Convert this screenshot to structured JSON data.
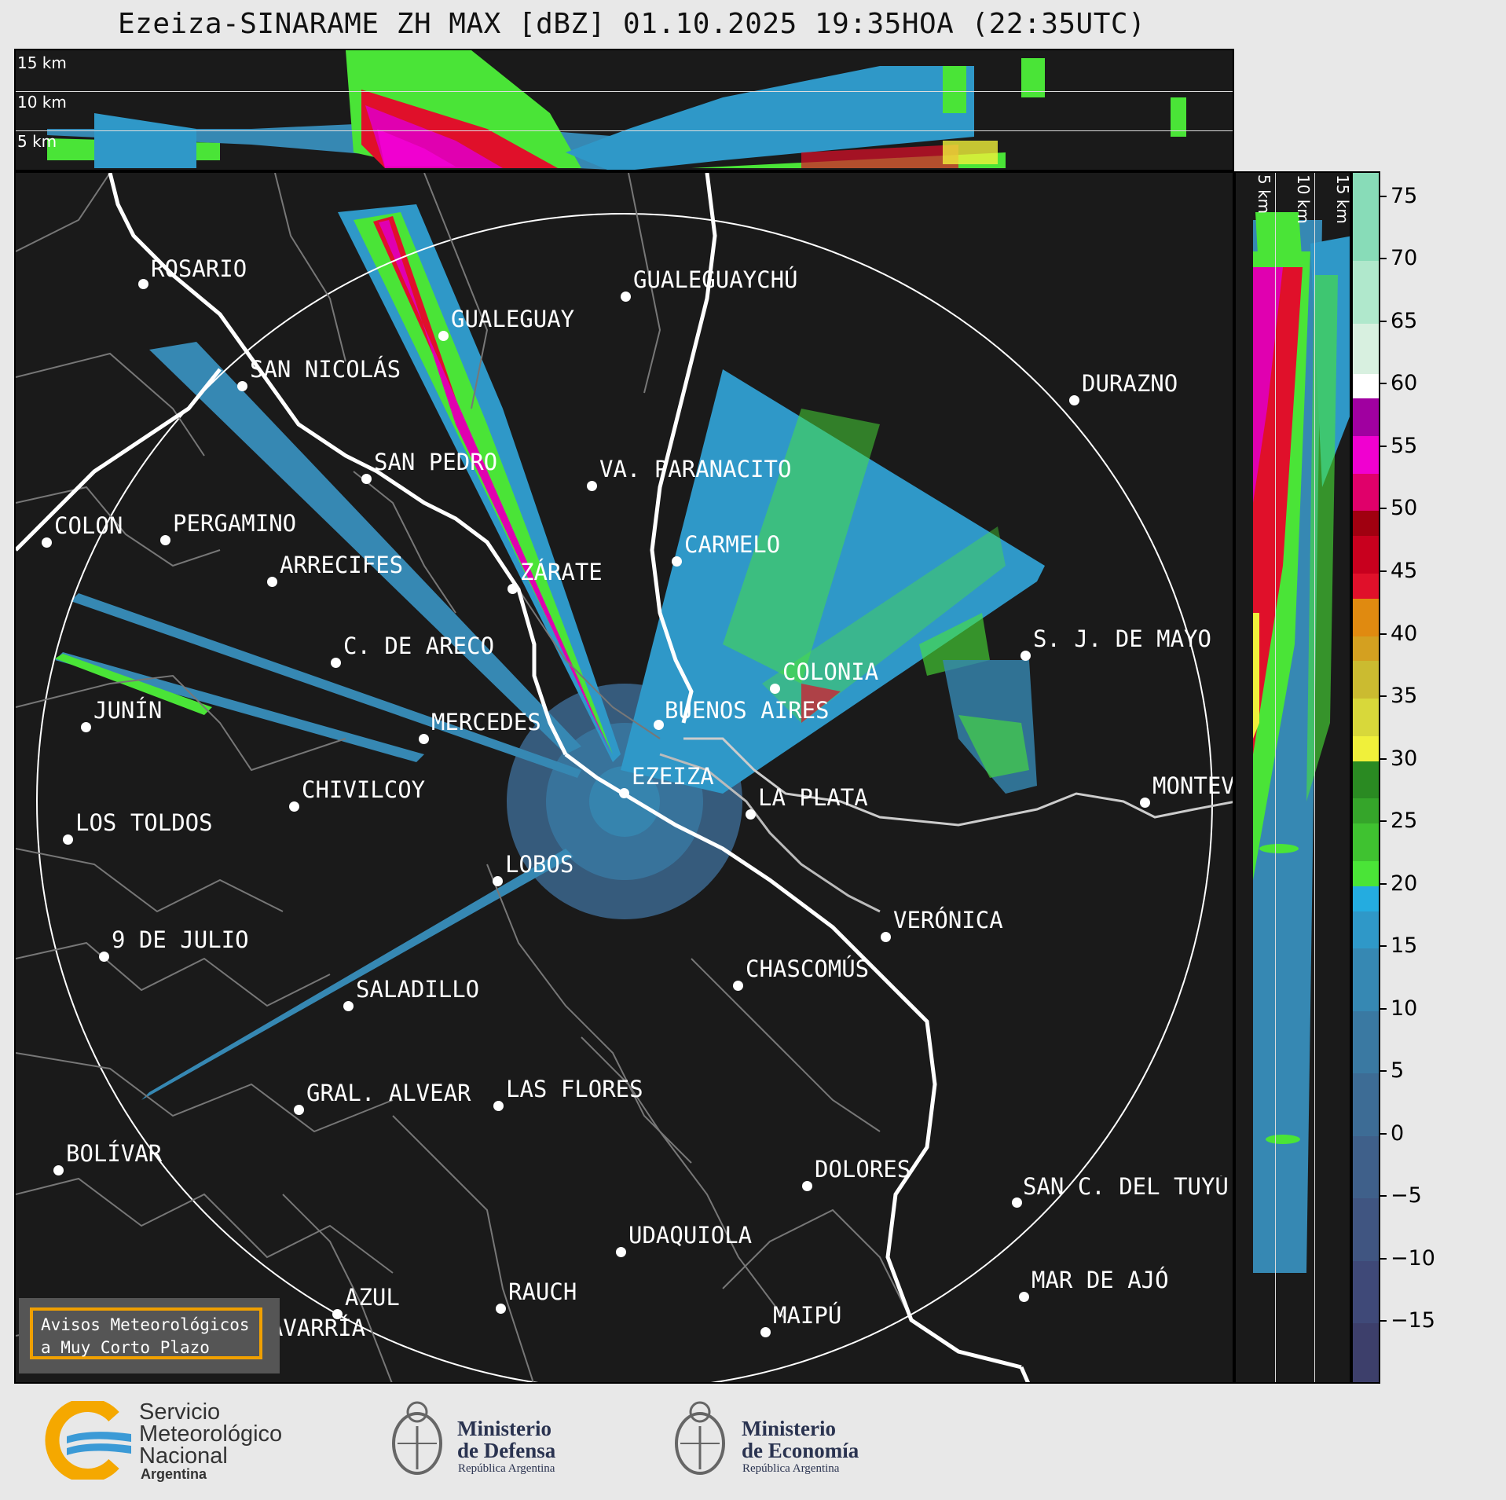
{
  "title": "Ezeiza-SINARAME ZH MAX [dBZ] 01.10.2025 19:35HOA (22:35UTC)",
  "height_labels": [
    "15 km",
    "10 km",
    "5 km"
  ],
  "side_height_labels": [
    "5 km",
    "10 km",
    "15 km"
  ],
  "colorbar": {
    "unit": "dBZ",
    "ticks": [
      "75",
      "70",
      "65",
      "60",
      "55",
      "50",
      "45",
      "40",
      "35",
      "30",
      "25",
      "20",
      "15",
      "10",
      "5",
      "0",
      "−5",
      "−10",
      "−15"
    ],
    "range": [
      -20,
      77
    ],
    "segments": [
      {
        "from": -20,
        "to": -15,
        "color": "#3d3f6b"
      },
      {
        "from": -15,
        "to": -10,
        "color": "#3f4978"
      },
      {
        "from": -10,
        "to": -5,
        "color": "#405581"
      },
      {
        "from": -5,
        "to": 0,
        "color": "#3f608a"
      },
      {
        "from": 0,
        "to": 5,
        "color": "#3d6c95"
      },
      {
        "from": 5,
        "to": 10,
        "color": "#3a79a2"
      },
      {
        "from": 10,
        "to": 15,
        "color": "#3688b3"
      },
      {
        "from": 15,
        "to": 18,
        "color": "#2f98c8"
      },
      {
        "from": 18,
        "to": 20,
        "color": "#24ace0"
      },
      {
        "from": 20,
        "to": 22,
        "color": "#4ae437"
      },
      {
        "from": 22,
        "to": 25,
        "color": "#3fc230"
      },
      {
        "from": 25,
        "to": 27,
        "color": "#35a52a"
      },
      {
        "from": 27,
        "to": 30,
        "color": "#2a8a22"
      },
      {
        "from": 30,
        "to": 32,
        "color": "#f0f03a"
      },
      {
        "from": 32,
        "to": 35,
        "color": "#d8d83a"
      },
      {
        "from": 35,
        "to": 38,
        "color": "#cbbb30"
      },
      {
        "from": 38,
        "to": 40,
        "color": "#d4a020"
      },
      {
        "from": 40,
        "to": 43,
        "color": "#e08a10"
      },
      {
        "from": 43,
        "to": 45,
        "color": "#e0102a"
      },
      {
        "from": 45,
        "to": 48,
        "color": "#c8001e"
      },
      {
        "from": 48,
        "to": 50,
        "color": "#a00010"
      },
      {
        "from": 50,
        "to": 53,
        "color": "#e0006a"
      },
      {
        "from": 53,
        "to": 56,
        "color": "#f000d0"
      },
      {
        "from": 56,
        "to": 59,
        "color": "#a000a0"
      },
      {
        "from": 59,
        "to": 61,
        "color": "#ffffff"
      },
      {
        "from": 61,
        "to": 65,
        "color": "#d8f0e0"
      },
      {
        "from": 65,
        "to": 70,
        "color": "#b0e8cc"
      },
      {
        "from": 70,
        "to": 77,
        "color": "#88dcb8"
      }
    ]
  },
  "cities": [
    {
      "name": "ROSARIO"
    },
    {
      "name": "GUALEGUAYCHÚ"
    },
    {
      "name": "GUALEGUAY"
    },
    {
      "name": "SAN NICOLÁS"
    },
    {
      "name": "DURAZNO"
    },
    {
      "name": "SAN PEDRO"
    },
    {
      "name": "VA. PARANACITO"
    },
    {
      "name": "COLON"
    },
    {
      "name": "PERGAMINO"
    },
    {
      "name": "CARMELO"
    },
    {
      "name": "ARRECIFES"
    },
    {
      "name": "ZÁRATE"
    },
    {
      "name": "C. DE ARECO"
    },
    {
      "name": "S. J. DE MAYO"
    },
    {
      "name": "COLONIA"
    },
    {
      "name": "JUNÍN"
    },
    {
      "name": "MERCEDES"
    },
    {
      "name": "BUENOS AIRES"
    },
    {
      "name": "EZEIZA"
    },
    {
      "name": "MONTEVIDEO"
    },
    {
      "name": "CHIVILCOY"
    },
    {
      "name": "LA PLATA"
    },
    {
      "name": "LOS TOLDOS"
    },
    {
      "name": "LOBOS"
    },
    {
      "name": "VERÓNICA"
    },
    {
      "name": "9 DE JULIO"
    },
    {
      "name": "CHASCOMÚS"
    },
    {
      "name": "SALADILLO"
    },
    {
      "name": "GRAL. ALVEAR"
    },
    {
      "name": "LAS FLORES"
    },
    {
      "name": "BOLÍVAR"
    },
    {
      "name": "DOLORES"
    },
    {
      "name": "SAN C. DEL TUYÚ"
    },
    {
      "name": "UDAQUIOLA"
    },
    {
      "name": "AZUL"
    },
    {
      "name": "RAUCH"
    },
    {
      "name": "MAR DE AJÓ"
    },
    {
      "name": "MAIPÚ"
    },
    {
      "name": "OLAVARRÍA"
    }
  ],
  "avisos": {
    "line1": "Avisos Meteorológicos",
    "line2": "a Muy Corto Plazo"
  },
  "logos": {
    "smn": {
      "line1": "Servicio",
      "line2": "Meteorológico",
      "line3": "Nacional",
      "line4": "Argentina"
    },
    "defensa": {
      "line1": "Ministerio",
      "line2": "de Defensa",
      "line3": "República Argentina"
    },
    "economia": {
      "line1": "Ministerio",
      "line2": "de Economía",
      "line3": "República Argentina"
    }
  }
}
